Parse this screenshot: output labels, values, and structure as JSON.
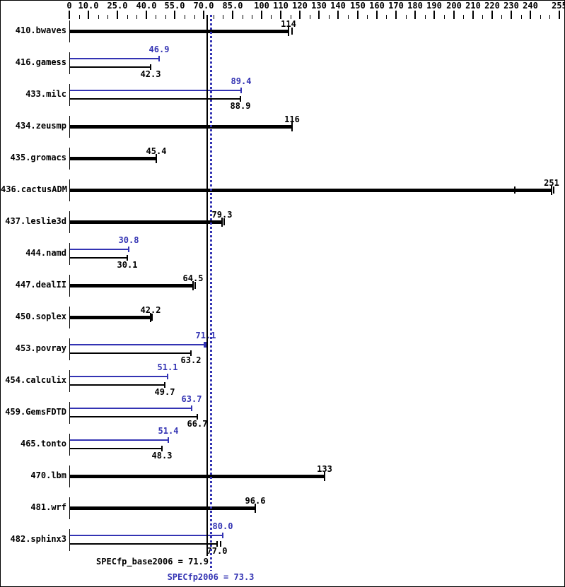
{
  "chart_data": {
    "type": "bar",
    "orientation": "horizontal",
    "x_axis": {
      "min": 0,
      "max": 255,
      "minor_tick_step": 5,
      "position": "top",
      "labeled_ticks": [
        0,
        10,
        25,
        40,
        55,
        70,
        85,
        100,
        110,
        120,
        130,
        140,
        150,
        160,
        170,
        180,
        190,
        200,
        210,
        220,
        230,
        240,
        255
      ],
      "tick_labels": [
        "0",
        "10.0",
        "25.0",
        "40.0",
        "55.0",
        "70.0",
        "85.0",
        "100",
        "110",
        "120",
        "130",
        "140",
        "150",
        "160",
        "170",
        "180",
        "190",
        "200",
        "210",
        "220",
        "230",
        "240",
        "255"
      ]
    },
    "series_colors": {
      "base": "#000000",
      "peak": "#3333b3"
    },
    "background_color": "#ffffff",
    "rows": [
      {
        "name": "410.bwaves",
        "base": 114,
        "base_label": "114",
        "peak": null,
        "peak_label": null,
        "base_run_marks": [
          116
        ]
      },
      {
        "name": "416.gamess",
        "base": 42.3,
        "base_label": "42.3",
        "peak": 46.9,
        "peak_label": "46.9"
      },
      {
        "name": "433.milc",
        "base": 88.9,
        "base_label": "88.9",
        "peak": 89.4,
        "peak_label": "89.4"
      },
      {
        "name": "434.zeusmp",
        "base": 116,
        "base_label": "116",
        "peak": null,
        "peak_label": null
      },
      {
        "name": "435.gromacs",
        "base": 45.4,
        "base_label": "45.4",
        "peak": null,
        "peak_label": null
      },
      {
        "name": "436.cactusADM",
        "base": 251,
        "base_label": "251",
        "peak": null,
        "peak_label": null,
        "base_run_marks": [
          232,
          252
        ]
      },
      {
        "name": "437.leslie3d",
        "base": 79.3,
        "base_label": "79.3",
        "peak": null,
        "peak_label": null,
        "base_run_marks": [
          80.6
        ]
      },
      {
        "name": "444.namd",
        "base": 30.1,
        "base_label": "30.1",
        "peak": 30.8,
        "peak_label": "30.8"
      },
      {
        "name": "447.dealII",
        "base": 64.5,
        "base_label": "64.5",
        "peak": null,
        "peak_label": null,
        "base_run_marks": [
          65.4
        ]
      },
      {
        "name": "450.soplex",
        "base": 42.2,
        "base_label": "42.2",
        "peak": null,
        "peak_label": null,
        "base_run_marks": [
          43.1
        ]
      },
      {
        "name": "453.povray",
        "base": 63.2,
        "base_label": "63.2",
        "peak": 71.1,
        "peak_label": "71.1",
        "peak_run_marks": [
          70.2,
          71.9
        ]
      },
      {
        "name": "454.calculix",
        "base": 49.7,
        "base_label": "49.7",
        "peak": 51.1,
        "peak_label": "51.1"
      },
      {
        "name": "459.GemsFDTD",
        "base": 66.7,
        "base_label": "66.7",
        "peak": 63.7,
        "peak_label": "63.7"
      },
      {
        "name": "465.tonto",
        "base": 48.3,
        "base_label": "48.3",
        "peak": 51.4,
        "peak_label": "51.4"
      },
      {
        "name": "470.lbm",
        "base": 133,
        "base_label": "133",
        "peak": null,
        "peak_label": null
      },
      {
        "name": "481.wrf",
        "base": 96.6,
        "base_label": "96.6",
        "peak": null,
        "peak_label": null
      },
      {
        "name": "482.sphinx3",
        "base": 77.0,
        "base_label": "77.0",
        "peak": 80.0,
        "peak_label": "80.0",
        "base_run_marks": [
          78.6
        ]
      }
    ],
    "reference_lines": [
      {
        "name": "SPECfp_base2006",
        "value": 71.9,
        "style": "solid",
        "color": "#000000",
        "label": "SPECfp_base2006 = 71.9"
      },
      {
        "name": "SPECfp2006",
        "value": 73.3,
        "style": "dotted",
        "color": "#3333b3",
        "label": "SPECfp2006 = 73.3"
      }
    ]
  }
}
